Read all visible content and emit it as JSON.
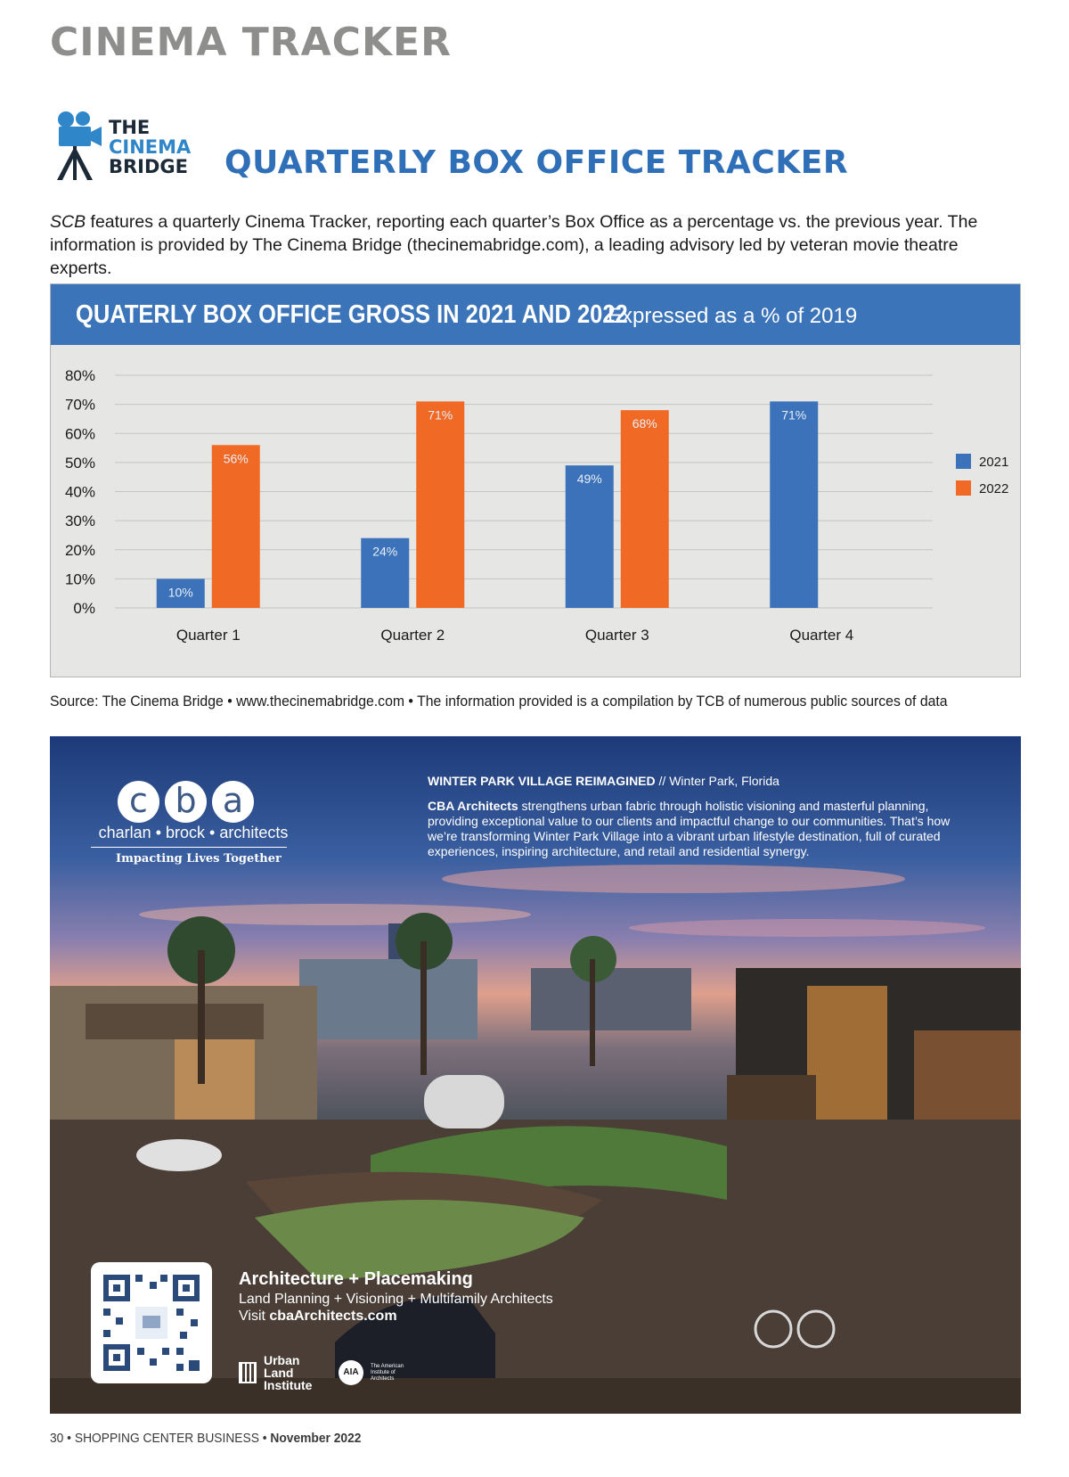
{
  "header": {
    "section": "CINEMA TRACKER"
  },
  "logo": {
    "line1": "THE",
    "line2": "CINEMA",
    "line3": "BRIDGE",
    "icon": "movie-camera-icon"
  },
  "tracker_title": "QUARTERLY BOX OFFICE TRACKER",
  "intro": {
    "lead": "SCB",
    "text": " features a quarterly Cinema Tracker, reporting each quarter’s Box Office as a percentage vs. the previous year. The information is provided by The Cinema Bridge (thecinemabridge.com), a leading advisory led by veteran movie theatre experts."
  },
  "chart_header": {
    "title": "QUATERLY BOX OFFICE GROSS IN 2021 AND 2022",
    "subtitle": "Expressed as a % of 2019"
  },
  "chart_data": {
    "type": "bar",
    "title": "QUATERLY BOX OFFICE GROSS IN 2021 AND 2022",
    "subtitle": "Expressed as a % of 2019",
    "categories": [
      "Quarter 1",
      "Quarter 2",
      "Quarter 3",
      "Quarter 4"
    ],
    "series": [
      {
        "name": "2021",
        "values": [
          10,
          24,
          49,
          71
        ],
        "labels": [
          "10%",
          "24%",
          "49%",
          "71%"
        ],
        "color": "#3b72b9"
      },
      {
        "name": "2022",
        "values": [
          56,
          71,
          68,
          null
        ],
        "labels": [
          "56%",
          "71%",
          "68%",
          ""
        ],
        "color": "#f06a25"
      }
    ],
    "yticks": [
      "0%",
      "10%",
      "20%",
      "30%",
      "40%",
      "50%",
      "60%",
      "70%",
      "80%"
    ],
    "ylim": [
      0,
      80
    ],
    "grid": true,
    "legend": "right"
  },
  "source_note": "Source: The Cinema Bridge • www.thecinemabridge.com • The information provided is a compilation by TCB of numerous public sources of data",
  "ad": {
    "logo_letters": [
      "c",
      "b",
      "a"
    ],
    "logo_name": "charlan • brock • architects",
    "tagline": "Impacting Lives Together",
    "headline": "WINTER PARK VILLAGE REIMAGINED",
    "headline_sep": " // ",
    "location": "Winter Park, Florida",
    "body_lead": "CBA Architects",
    "body": " strengthens urban fabric through holistic visioning and masterful planning, providing exceptional value to our clients and impactful change to our communities. That’s how we’re transforming Winter Park Village into a vibrant urban lifestyle destination, full of curated experiences, inspiring architecture, and retail and residential synergy.",
    "footer_heading": "Architecture + Placemaking",
    "footer_services": "Land Planning + Visioning + Multifamily Architects",
    "footer_visit": "Visit ",
    "footer_url": "cbaArchitects.com",
    "badge_uli": "Urban Land Institute",
    "badge_aia": "AIA",
    "badge_aia_text": "The American Institute of Architects",
    "qr_icon": "qr-code-icon",
    "colors": {
      "sky_top": "#1d3a78",
      "sunset": "#e0a08c"
    }
  },
  "page_footer": {
    "page": "30",
    "sep": " • ",
    "publication": "SHOPPING CENTER BUSINESS",
    "issue": "November 2022"
  }
}
